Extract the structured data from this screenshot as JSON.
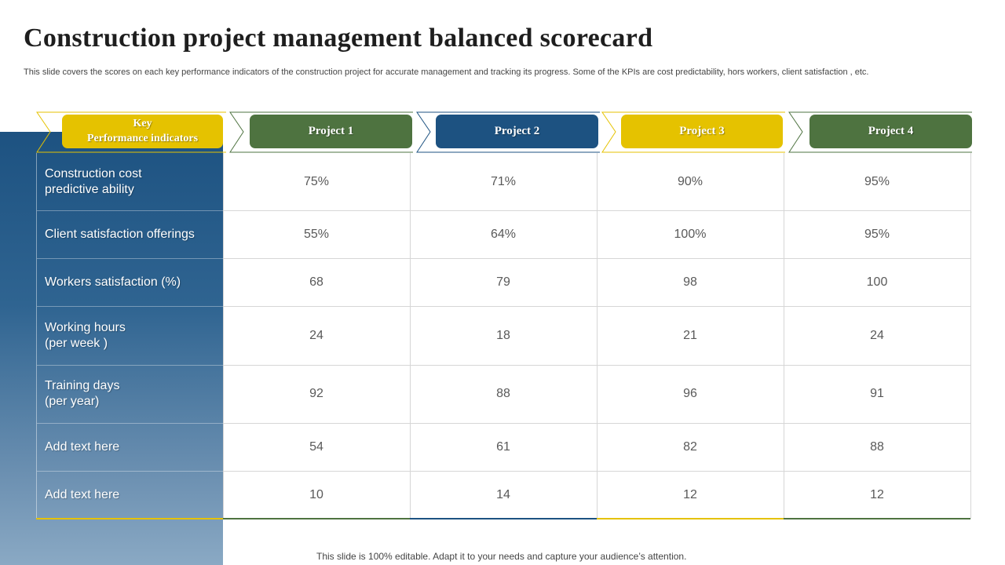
{
  "slide": {
    "title": "Construction project management balanced scorecard",
    "subtitle": "This slide covers the scores on each key performance indicators of the construction project for accurate management and tracking its progress. Some of the KPIs are cost predictability, hors workers, client satisfaction , etc.",
    "footer": "This slide is 100% editable. Adapt it to your needs and capture your audience’s attention."
  },
  "colors": {
    "yellow": "#e5c200",
    "green": "#4e7340",
    "blue": "#1d5281",
    "panel_top": "#1d5281",
    "panel_bottom": "#8aa9c4"
  },
  "table": {
    "kpi_header": "Key\nPerformance indicators",
    "projects": [
      {
        "label": "Project  1",
        "color": "#4e7340"
      },
      {
        "label": "Project  2",
        "color": "#1d5281"
      },
      {
        "label": "Project  3",
        "color": "#e5c200"
      },
      {
        "label": "Project  4",
        "color": "#4e7340"
      }
    ],
    "rows": [
      {
        "kpi": "Construction cost\npredictive ability",
        "values": [
          "75%",
          "71%",
          "90%",
          "95%"
        ]
      },
      {
        "kpi": "Client satisfaction offerings",
        "values": [
          "55%",
          "64%",
          "100%",
          "95%"
        ]
      },
      {
        "kpi": "Workers satisfaction (%)",
        "values": [
          "68",
          "79",
          "98",
          "100"
        ]
      },
      {
        "kpi": "Working hours\n(per week )",
        "values": [
          "24",
          "18",
          "21",
          "24"
        ]
      },
      {
        "kpi": "Training days\n(per year)",
        "values": [
          "92",
          "88",
          "96",
          "91"
        ]
      },
      {
        "kpi": "Add text here",
        "values": [
          "54",
          "61",
          "82",
          "88"
        ]
      },
      {
        "kpi": "Add text here",
        "values": [
          "10",
          "14",
          "12",
          "12"
        ]
      }
    ]
  }
}
